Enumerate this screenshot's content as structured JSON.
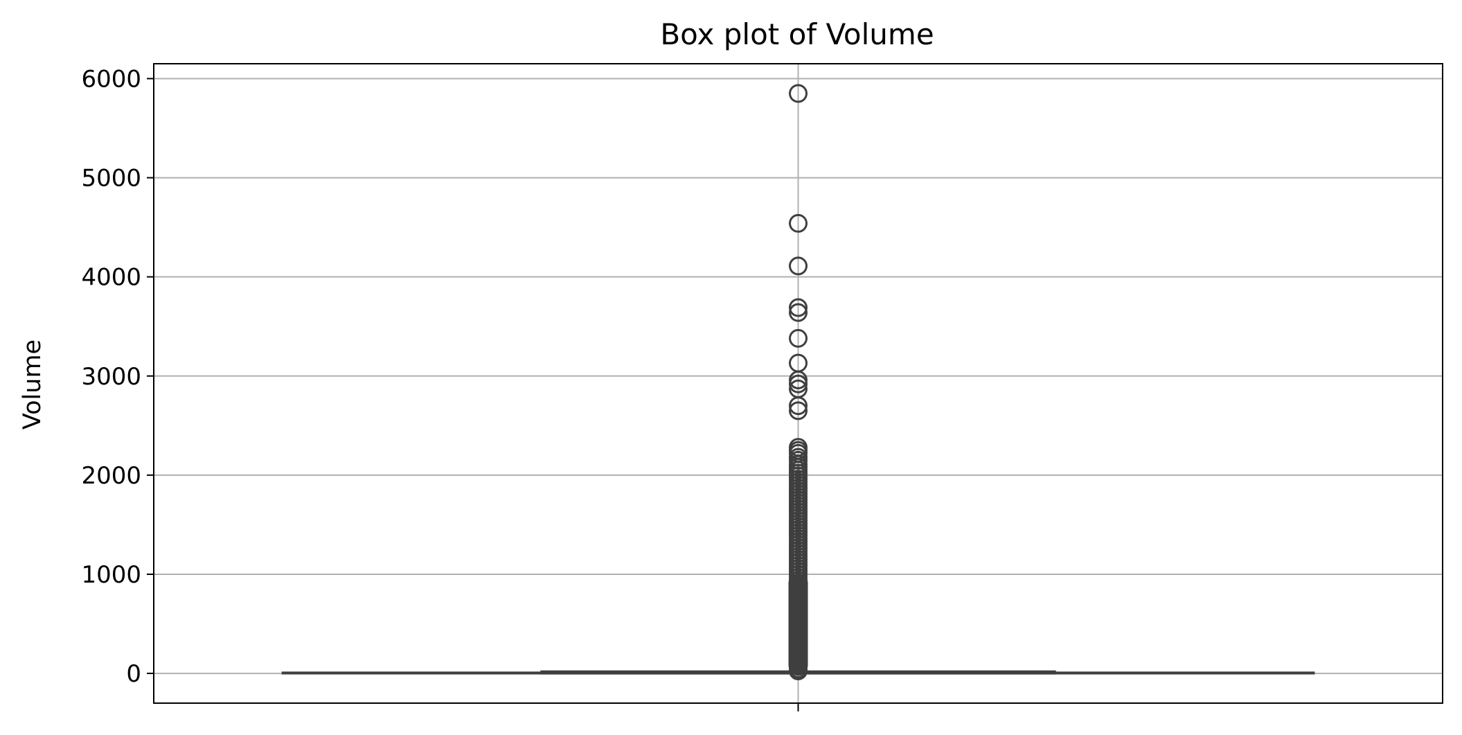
{
  "chart_data": {
    "type": "box",
    "title": "Box plot of Volume",
    "xlabel": "",
    "ylabel": "Volume",
    "ylim": [
      -300,
      6150
    ],
    "yticks": [
      0,
      1000,
      2000,
      3000,
      4000,
      5000,
      6000
    ],
    "grid": true,
    "colors": {
      "box_edge": "#3f3f3f",
      "grid": "#b0b0b0",
      "axes": "#000000"
    },
    "series": [
      {
        "box": {
          "whisker_low": 0,
          "q1": 0,
          "median": 3,
          "q3": 8,
          "whisker_high": 20
        },
        "outliers": [
          5850,
          4540,
          4110,
          3690,
          3640,
          3380,
          3130,
          2960,
          2920,
          2870,
          2700,
          2650,
          2280,
          2250,
          2220,
          2180,
          2150,
          2110,
          2080,
          2050,
          2020,
          1990,
          1960,
          1930,
          1900,
          1870,
          1840,
          1810,
          1780,
          1750,
          1720,
          1690,
          1660,
          1630,
          1600,
          1570,
          1540,
          1510,
          1480,
          1450,
          1420,
          1390,
          1360,
          1330,
          1300,
          1270,
          1240,
          1210,
          1180,
          1150,
          1120,
          1090,
          1060,
          1030,
          1000,
          970,
          940,
          910,
          880,
          850,
          820,
          790,
          760,
          730,
          700,
          670,
          640,
          610,
          580,
          550,
          520,
          490,
          460,
          430,
          400,
          370,
          340,
          310,
          280,
          250,
          220,
          190,
          160,
          130,
          100,
          70,
          45,
          25
        ]
      }
    ]
  }
}
